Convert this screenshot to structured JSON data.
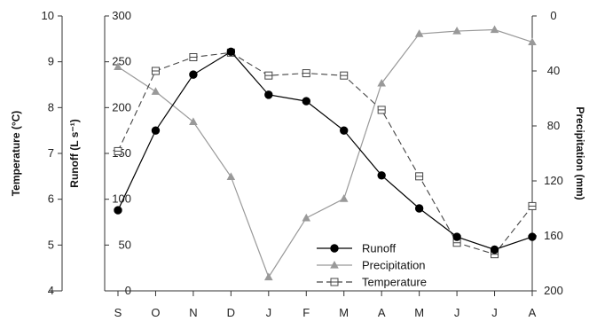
{
  "chart_data": {
    "type": "line",
    "categories": [
      "S",
      "O",
      "N",
      "D",
      "J",
      "F",
      "M",
      "A",
      "M",
      "J",
      "J",
      "A"
    ],
    "axes": {
      "temperature": {
        "label": "Temperature (°C)",
        "range": [
          4,
          10
        ],
        "ticks": [
          "4",
          "5",
          "6",
          "7",
          "8",
          "9",
          "10"
        ]
      },
      "runoff": {
        "label": "Runoff (L s⁻¹)",
        "range": [
          0,
          300
        ],
        "ticks": [
          "0",
          "50",
          "100",
          "150",
          "200",
          "250",
          "300"
        ]
      },
      "precipitation": {
        "label": "Precipitation (mm)",
        "range": [
          0,
          200
        ],
        "inverted": true,
        "ticks": [
          "0",
          "40",
          "80",
          "120",
          "160",
          "200"
        ]
      }
    },
    "series": [
      {
        "name": "Runoff",
        "axis": "runoff",
        "marker": "filled-circle",
        "line": "solid",
        "color": "#000000",
        "values": [
          88,
          175,
          236,
          261,
          214,
          207,
          175,
          126,
          90,
          59,
          45,
          59
        ]
      },
      {
        "name": "Precipitation",
        "axis": "precipitation",
        "marker": "filled-triangle",
        "line": "solid",
        "color": "#999999",
        "values": [
          37,
          55,
          77,
          117,
          190,
          147,
          133,
          49,
          13,
          11,
          10,
          19
        ]
      },
      {
        "name": "Temperature",
        "axis": "temperature",
        "marker": "open-square",
        "line": "dashed",
        "color": "#444444",
        "values": [
          7.05,
          8.8,
          9.1,
          9.2,
          8.7,
          8.75,
          8.7,
          7.95,
          6.5,
          5.05,
          4.8,
          5.85
        ]
      }
    ],
    "legend": {
      "position": "bottom-center"
    },
    "grid": false
  }
}
